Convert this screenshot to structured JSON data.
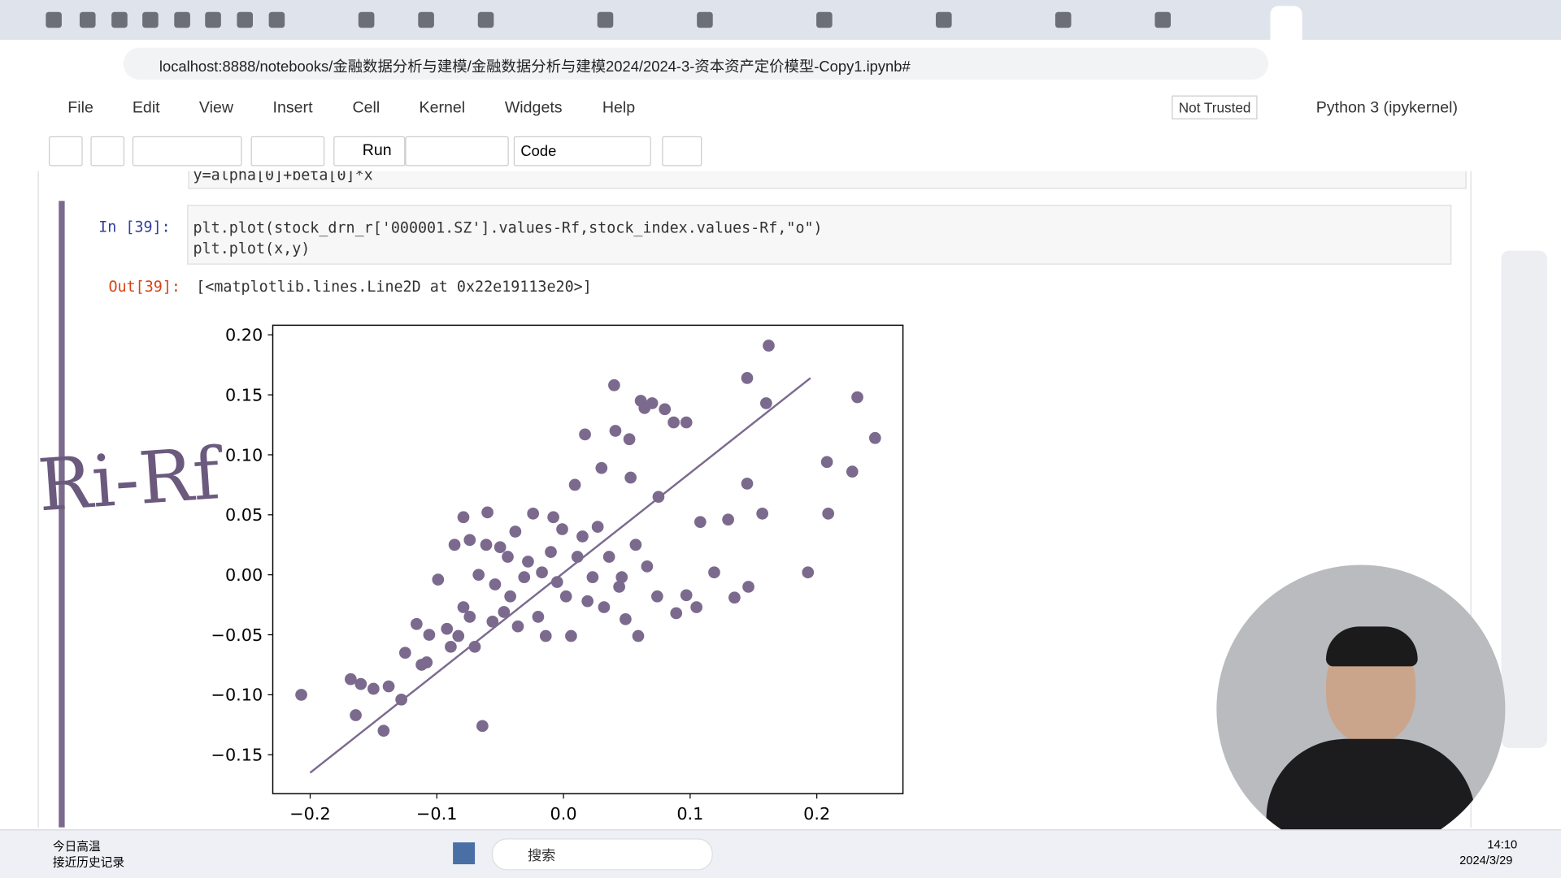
{
  "browser": {
    "url": "localhost:8888/notebooks/金融数据分析与建模/金融数据分析与建模2024/2024-3-资本资产定价模型-Copy1.ipynb#"
  },
  "menu": [
    "File",
    "Edit",
    "View",
    "Insert",
    "Cell",
    "Kernel",
    "Widgets",
    "Help"
  ],
  "status": {
    "trust": "Not Trusted",
    "kernel": "Python 3 (ipykernel)"
  },
  "toolbar": {
    "run": "Run",
    "cell_type": "Code"
  },
  "cells": [
    {
      "code": [
        "y=alpha[0]+beta[0]*x"
      ]
    },
    {
      "prompt_in": "In  [39]:",
      "code": [
        "plt.plot(stock_drn_r['000001.SZ'].values-Rf,stock_index.values-Rf,\"o\")",
        "plt.plot(x,y)"
      ],
      "prompt_out": "Out[39]:",
      "output": "[<matplotlib.lines.Line2D at 0x22e19113e20>]"
    }
  ],
  "handwriting": "Ri-Rf",
  "taskbar": {
    "weather_title": "今日高温",
    "weather_sub": "接近历史记录",
    "search": "搜索",
    "time": "14:10",
    "date": "2024/3/29"
  },
  "chart_data": {
    "type": "scatter",
    "xlim": [
      -0.2295,
      0.268
    ],
    "ylim": [
      -0.1824,
      0.208
    ],
    "xticks": [
      {
        "value": -0.2,
        "label": "−0.2"
      },
      {
        "value": -0.1,
        "label": "−0.1"
      },
      {
        "value": 0,
        "label": "0.0"
      },
      0.1,
      0.2
    ],
    "yticks": [
      {
        "value": -0.15,
        "label": "−0.15"
      },
      {
        "value": -0.1,
        "label": "−0.10"
      },
      {
        "value": -0.05,
        "label": "−0.05"
      },
      {
        "value": 0,
        "label": "0.00"
      },
      {
        "value": 0.05,
        "label": "0.05"
      },
      {
        "value": 0.1,
        "label": "0.10"
      },
      {
        "value": 0.15,
        "label": "0.15"
      },
      {
        "value": 0.2,
        "label": "0.20"
      }
    ],
    "series": [
      {
        "type": "scatter",
        "color": "#7b6a8e",
        "x": [
          -0.207,
          -0.168,
          -0.16,
          -0.15,
          -0.138,
          -0.164,
          -0.142,
          -0.128,
          -0.125,
          -0.112,
          -0.108,
          -0.116,
          -0.106,
          -0.099,
          -0.092,
          -0.089,
          -0.079,
          -0.086,
          -0.074,
          -0.079,
          -0.074,
          -0.07,
          -0.064,
          -0.067,
          -0.06,
          -0.061,
          -0.054,
          -0.05,
          -0.047,
          -0.042,
          -0.038,
          -0.036,
          -0.031,
          -0.028,
          -0.024,
          -0.02,
          -0.017,
          -0.014,
          -0.01,
          -0.008,
          -0.005,
          -0.001,
          0.002,
          0.006,
          0.009,
          0.011,
          0.015,
          0.017,
          0.019,
          0.023,
          0.027,
          0.03,
          0.032,
          0.036,
          0.04,
          0.041,
          0.044,
          0.049,
          0.052,
          0.053,
          0.057,
          0.059,
          0.061,
          0.064,
          0.07,
          0.074,
          0.075,
          0.08,
          0.087,
          0.097,
          0.097,
          0.108,
          0.119,
          0.13,
          0.135,
          0.145,
          0.146,
          0.145,
          0.157,
          0.16,
          0.162,
          0.193,
          0.208,
          0.209,
          0.228,
          0.232,
          0.246,
          0.105,
          0.089,
          0.046,
          0.066,
          -0.044,
          -0.056,
          -0.083
        ],
        "y": [
          -0.1,
          -0.087,
          -0.091,
          -0.095,
          -0.093,
          -0.117,
          -0.13,
          -0.104,
          -0.065,
          -0.075,
          -0.073,
          -0.041,
          -0.05,
          -0.004,
          -0.045,
          -0.06,
          0.048,
          0.025,
          0.029,
          -0.027,
          -0.035,
          -0.06,
          -0.126,
          0,
          0.052,
          0.025,
          -0.008,
          0.023,
          -0.031,
          -0.018,
          0.036,
          -0.043,
          -0.002,
          0.011,
          0.051,
          -0.035,
          0.002,
          -0.051,
          0.019,
          0.048,
          -0.006,
          0.038,
          -0.018,
          -0.051,
          0.075,
          0.015,
          0.032,
          0.117,
          -0.022,
          -0.002,
          0.04,
          0.089,
          -0.027,
          0.015,
          0.158,
          0.12,
          -0.01,
          -0.037,
          0.113,
          0.081,
          0.025,
          -0.051,
          0.145,
          0.139,
          0.143,
          -0.018,
          0.065,
          0.138,
          0.127,
          0.127,
          -0.017,
          0.044,
          0.002,
          0.046,
          -0.019,
          0.076,
          -0.01,
          0.164,
          0.051,
          0.143,
          0.191,
          0.002,
          0.094,
          0.051,
          0.086,
          0.148,
          0.114,
          -0.027,
          -0.032,
          -0.002,
          0.007,
          0.015,
          -0.039,
          -0.051
        ]
      },
      {
        "type": "line",
        "color": "#7b6a8e",
        "x": [
          -0.2,
          0.195
        ],
        "y": [
          -0.165,
          0.164
        ]
      }
    ]
  }
}
